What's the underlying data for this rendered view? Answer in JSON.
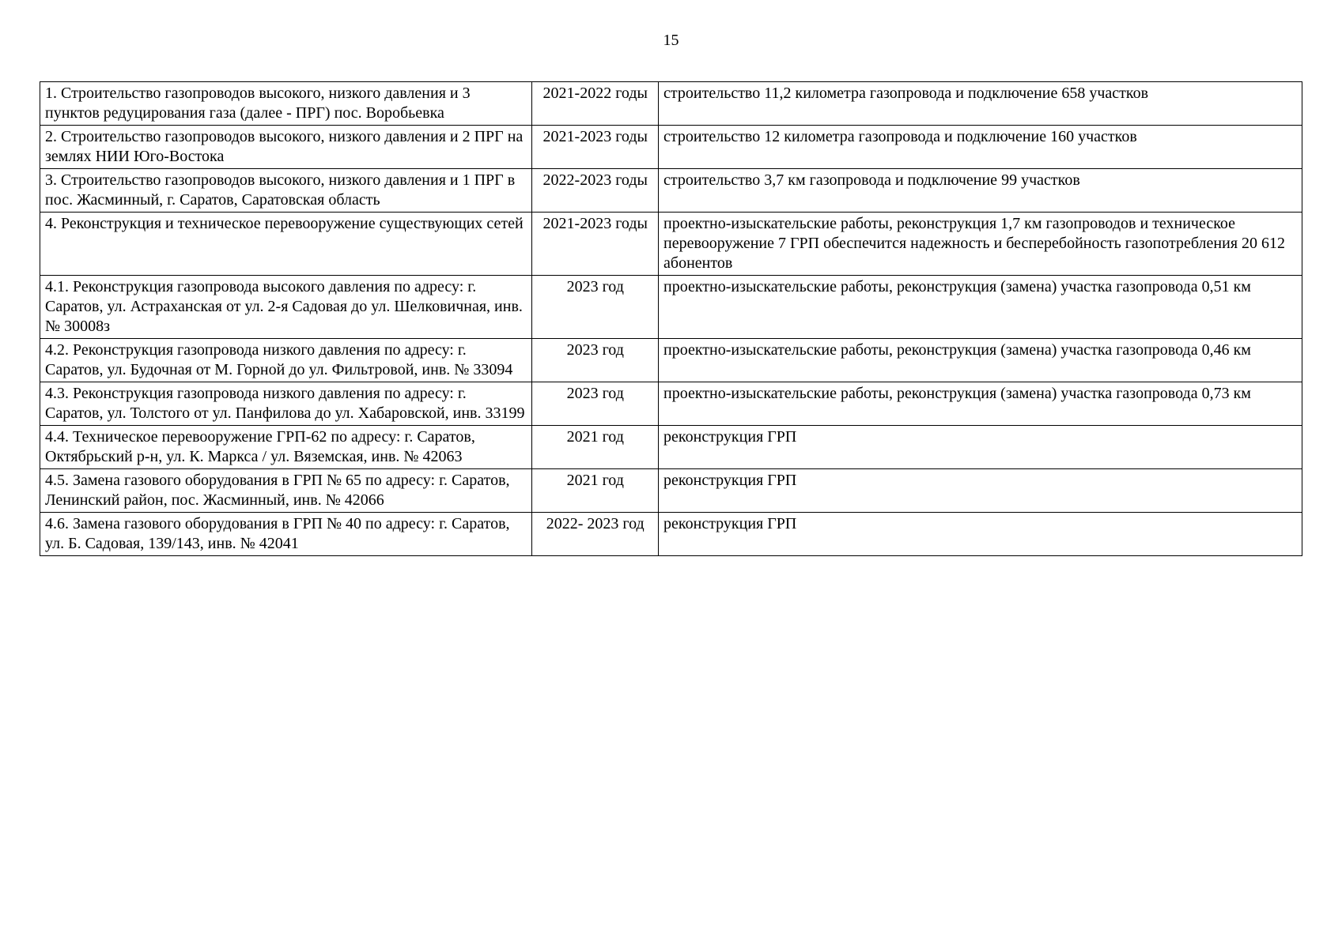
{
  "page_number": "15",
  "rows": [
    {
      "col1": "1. Строительство газопроводов высокого, низкого давления и 3 пунктов редуцирования газа (далее - ПРГ) пос. Воробьевка",
      "col2": "2021-2022 годы",
      "col3": "строительство 11,2 километра газопровода и подключение 658 участков"
    },
    {
      "col1": "2. Строительство газопроводов высокого, низкого давления и 2 ПРГ на землях НИИ Юго-Востока",
      "col2": "2021-2023 годы",
      "col3": "строительство 12 километра газопровода и подключение 160 участков"
    },
    {
      "col1": "3. Строительство газопроводов высокого, низкого давления и 1 ПРГ в пос. Жасминный, г. Саратов, Саратовская область",
      "col2": "2022-2023 годы",
      "col3": "строительство 3,7 км газопровода и подключение 99 участков"
    },
    {
      "col1": "4. Реконструкция и техническое перевооружение существующих сетей",
      "col2": "2021-2023 годы",
      "col3": "проектно-изыскательские работы, реконструкция 1,7 км газопроводов и техническое перевооружение 7 ГРП обеспечится надежность и бесперебойность газопотребления 20 612 абонентов"
    },
    {
      "col1": "4.1. Реконструкция газопровода высокого давления по адресу: г. Саратов, ул. Астраханская от ул. 2-я Садовая до ул. Шелковичная, инв. № 30008з",
      "col2": "2023 год",
      "col3": "проектно-изыскательские работы, реконструкция (замена) участка газопровода 0,51 км"
    },
    {
      "col1": "4.2. Реконструкция газопровода низкого давления по адресу: г. Саратов, ул. Будочная от М. Горной до ул. Фильтровой, инв. № 33094",
      "col2": "2023 год",
      "col3": "проектно-изыскательские работы, реконструкция (замена) участка газопровода 0,46 км"
    },
    {
      "col1": "4.3. Реконструкция газопровода низкого давления по адресу: г. Саратов, ул. Толстого от ул. Панфилова до ул. Хабаровской, инв. 33199",
      "col2": "2023 год",
      "col3": "проектно-изыскательские работы, реконструкция (замена) участка газопровода 0,73 км"
    },
    {
      "col1": "4.4. Техническое перевооружение ГРП-62 по адресу: г. Саратов, Октябрьский р-н, ул. К. Маркса / ул. Вяземская, инв. № 42063",
      "col2": "2021 год",
      "col3": "реконструкция ГРП"
    },
    {
      "col1": "4.5. Замена газового оборудования в ГРП № 65 по адресу: г. Саратов, Ленинский район, пос. Жасминный, инв. № 42066",
      "col2": "2021 год",
      "col3": "реконструкция ГРП"
    },
    {
      "col1": "4.6. Замена газового оборудования в ГРП № 40 по адресу: г. Саратов, ул. Б. Садовая, 139/143, инв. № 42041",
      "col2": "2022- 2023 год",
      "col3": "реконструкция ГРП"
    }
  ]
}
